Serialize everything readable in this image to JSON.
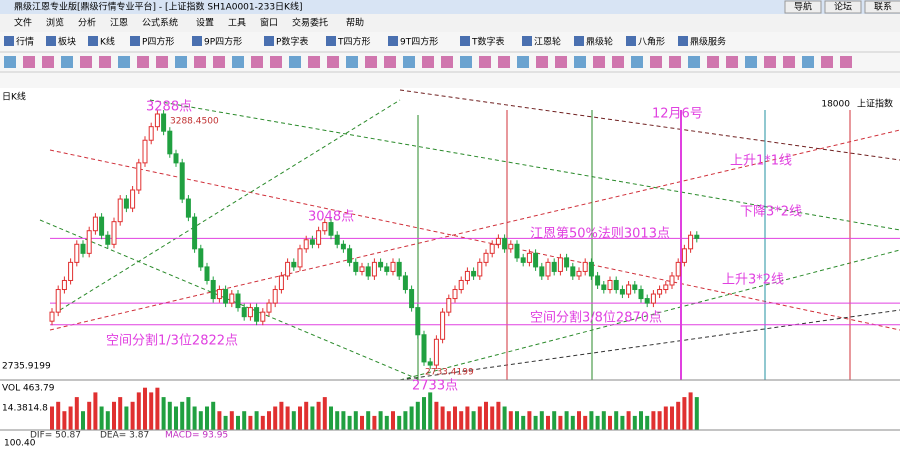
{
  "window": {
    "title": "鼎级江恩专业版[鼎级行情专业平台] - [上证指数 SH1A0001-233日K线]",
    "buttons": [
      "导航",
      "论坛",
      "联系"
    ]
  },
  "menu": [
    "文件",
    "浏览",
    "分析",
    "江恩",
    "公式系统",
    "设置",
    "工具",
    "窗口",
    "交易委托",
    "帮助"
  ],
  "toolbar": [
    "行情",
    "板块",
    "K线",
    "P四方形",
    "9P四方形",
    "P数字表",
    "T四方形",
    "9T四方形",
    "T数字表",
    "江恩轮",
    "鼎级轮",
    "八角形",
    "鼎级服务"
  ],
  "chart": {
    "label": "日K线",
    "index_name": "上证指数",
    "top_right": "18000",
    "high_label": "3288.4500",
    "low_label": "2733.4199",
    "ylim": [
      2700,
      3330
    ],
    "closes": [
      2850,
      2900,
      2920,
      2960,
      3000,
      2980,
      3030,
      3060,
      3020,
      3000,
      3050,
      3100,
      3080,
      3120,
      3180,
      3230,
      3260,
      3288,
      3250,
      3200,
      3180,
      3100,
      3060,
      2990,
      2950,
      2920,
      2880,
      2900,
      2870,
      2890,
      2860,
      2840,
      2860,
      2830,
      2850,
      2870,
      2900,
      2930,
      2960,
      2950,
      2990,
      3010,
      3000,
      3030,
      3048,
      3020,
      3000,
      2990,
      2960,
      2940,
      2950,
      2930,
      2960,
      2950,
      2940,
      2960,
      2930,
      2900,
      2860,
      2800,
      2740,
      2733,
      2790,
      2850,
      2880,
      2900,
      2920,
      2940,
      2930,
      2960,
      2980,
      3000,
      3013,
      2990,
      3000,
      2970,
      2960,
      2980,
      2950,
      2930,
      2960,
      2940,
      2970,
      2950,
      2930,
      2940,
      2960,
      2930,
      2910,
      2900,
      2920,
      2900,
      2890,
      2910,
      2900,
      2880,
      2870,
      2890,
      2900,
      2910,
      2930,
      2960,
      2990,
      3020,
      3013
    ],
    "first_open": 2830,
    "levels": [
      3013,
      2870,
      2822
    ],
    "volumes": [
      5,
      6,
      4,
      5,
      7,
      4,
      6,
      8,
      5,
      4,
      6,
      7,
      5,
      6,
      8,
      9,
      8,
      9,
      7,
      6,
      5,
      6,
      7,
      5,
      4,
      5,
      6,
      4,
      3,
      4,
      3,
      4,
      3,
      4,
      3,
      4,
      5,
      6,
      5,
      4,
      5,
      6,
      5,
      6,
      7,
      5,
      4,
      4,
      3,
      4,
      3,
      4,
      3,
      4,
      3,
      4,
      3,
      4,
      5,
      6,
      7,
      8,
      6,
      5,
      4,
      5,
      4,
      5,
      4,
      5,
      6,
      5,
      6,
      5,
      4,
      4,
      3,
      4,
      3,
      4,
      3,
      4,
      3,
      4,
      3,
      4,
      3,
      4,
      3,
      4,
      3,
      4,
      3,
      4,
      3,
      4,
      3,
      4,
      4,
      5,
      5,
      6,
      7,
      8,
      7
    ],
    "vlim": [
      0,
      10
    ],
    "annotations": [
      "3288点",
      "3048点",
      "江恩第50%法则3013点",
      "12月6号",
      "上升1*1线",
      "下降3*2线",
      "上升3*2线",
      "空间分割3/8位2870点",
      "空间分割1/3位2822点",
      "2733点"
    ],
    "left_labels": [
      "2735.9199",
      "VOL 463.79",
      "14.3814.8"
    ],
    "macd": [
      "DIF= 50.87",
      "DEA= 3.87",
      "MACD= 93.95"
    ],
    "bottom": "100.40"
  }
}
